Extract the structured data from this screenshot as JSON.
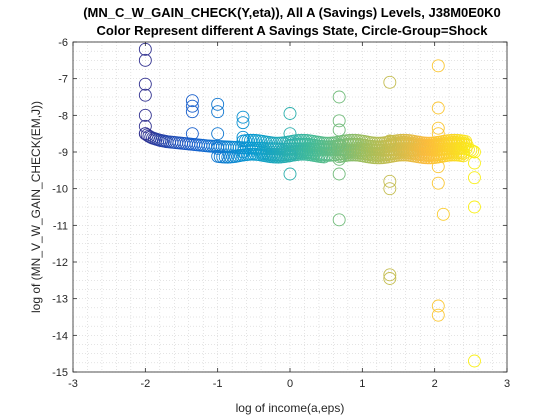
{
  "chart_data": {
    "type": "scatter",
    "title": "(MN_C_W_GAIN_CHECK(Y,eta)), All A (Savings) Levels, J38M0E0K0",
    "subtitle": "Color Represent different A Savings State, Circle-Group=Shock",
    "xlabel": "log of income(a,eps)",
    "ylabel": "log of (MN_V_W_GAIN_CHECK(EM,J))",
    "xlim": [
      -3,
      3
    ],
    "ylim": [
      -15,
      -6
    ],
    "xticks": [
      "-3",
      "-2",
      "-1",
      "0",
      "1",
      "2",
      "3"
    ],
    "yticks": [
      "-15",
      "-14",
      "-13",
      "-12",
      "-11",
      "-10",
      "-9",
      "-8",
      "-7",
      "-6"
    ],
    "grid": "minor-dotted",
    "marker": "open-circle",
    "colormap": "parula",
    "groups": [
      {
        "x": -2.0,
        "y": [
          -6.2,
          -6.5,
          -7.15,
          -7.45,
          -8.0,
          -8.3,
          -8.5
        ]
      },
      {
        "x": -1.35,
        "y": [
          -7.6,
          -7.75,
          -7.9,
          -8.5
        ]
      },
      {
        "x": -1.0,
        "y": [
          -7.7,
          -7.9,
          -8.5,
          -8.9
        ]
      },
      {
        "x": -0.65,
        "y": [
          -8.05,
          -8.2,
          -8.6,
          -9.0
        ]
      },
      {
        "x": 0.0,
        "y": [
          -7.95,
          -8.5,
          -9.1,
          -9.6
        ]
      },
      {
        "x": 0.68,
        "y": [
          -7.5,
          -8.15,
          -8.4,
          -8.8,
          -9.2,
          -9.6,
          -10.85
        ]
      },
      {
        "x": 1.38,
        "y": [
          -7.1,
          -8.7,
          -9.8,
          -10.0,
          -12.35,
          -12.45
        ]
      },
      {
        "x": 2.05,
        "y": [
          -6.65,
          -7.8,
          -8.35,
          -8.5,
          -9.4,
          -9.85,
          -13.2,
          -13.45
        ]
      },
      {
        "x": 2.12,
        "y": [
          -10.7
        ]
      },
      {
        "x": 2.55,
        "y": [
          -9.3,
          -9.7,
          -10.5,
          -14.7
        ]
      }
    ],
    "main_curve": [
      [
        -2.0,
        -8.5
      ],
      [
        -1.95,
        -8.57
      ],
      [
        -1.9,
        -8.62
      ],
      [
        -1.85,
        -8.65
      ],
      [
        -1.8,
        -8.68
      ],
      [
        -1.75,
        -8.7
      ],
      [
        -1.7,
        -8.72
      ],
      [
        -1.6,
        -8.74
      ],
      [
        -1.5,
        -8.76
      ],
      [
        -1.4,
        -8.78
      ],
      [
        -1.3,
        -8.8
      ],
      [
        -1.2,
        -8.82
      ],
      [
        -1.1,
        -8.84
      ],
      [
        -1.0,
        -8.85
      ],
      [
        -0.9,
        -8.86
      ],
      [
        -0.8,
        -8.87
      ],
      [
        -0.7,
        -8.88
      ],
      [
        -0.6,
        -8.89
      ],
      [
        -0.5,
        -8.9
      ],
      [
        -0.4,
        -8.9
      ],
      [
        -0.3,
        -8.91
      ],
      [
        -0.2,
        -8.91
      ],
      [
        -0.1,
        -8.92
      ],
      [
        0.0,
        -8.92
      ],
      [
        0.1,
        -8.92
      ],
      [
        0.2,
        -8.93
      ],
      [
        0.3,
        -8.93
      ],
      [
        0.4,
        -8.93
      ],
      [
        0.5,
        -8.93
      ],
      [
        0.6,
        -8.93
      ],
      [
        0.7,
        -8.94
      ],
      [
        0.8,
        -8.94
      ],
      [
        0.9,
        -8.94
      ],
      [
        1.0,
        -8.94
      ],
      [
        1.1,
        -8.94
      ],
      [
        1.2,
        -8.94
      ],
      [
        1.3,
        -8.94
      ],
      [
        1.4,
        -8.94
      ],
      [
        1.5,
        -8.94
      ],
      [
        1.6,
        -8.94
      ],
      [
        1.7,
        -8.94
      ],
      [
        1.8,
        -8.93
      ],
      [
        1.9,
        -8.93
      ],
      [
        2.0,
        -8.93
      ],
      [
        2.1,
        -8.92
      ],
      [
        2.2,
        -8.92
      ],
      [
        2.3,
        -8.91
      ],
      [
        2.4,
        -8.9
      ],
      [
        2.5,
        -8.95
      ],
      [
        2.55,
        -9.0
      ]
    ],
    "cloud_branches": [
      {
        "x_start": -0.65,
        "x_end": 2.45,
        "y": -8.72
      },
      {
        "x_start": -0.4,
        "x_end": 2.4,
        "y": -9.05
      },
      {
        "x_start": 0.0,
        "x_end": 2.45,
        "y": -8.82
      },
      {
        "x_start": 0.68,
        "x_end": 2.4,
        "y": -9.12
      },
      {
        "x_start": 1.38,
        "x_end": 2.45,
        "y": -8.78
      },
      {
        "x_start": -1.0,
        "x_end": 0.5,
        "y": -9.1
      }
    ]
  }
}
